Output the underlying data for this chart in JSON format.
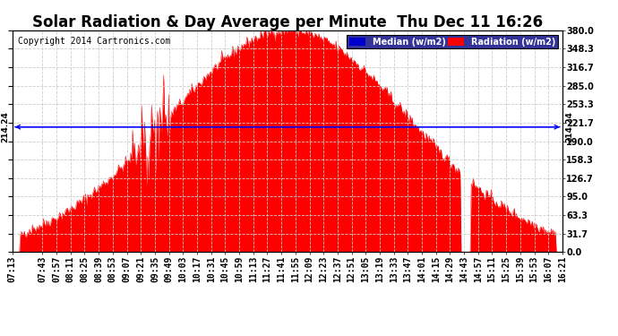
{
  "title": "Solar Radiation & Day Average per Minute  Thu Dec 11 16:26",
  "copyright": "Copyright 2014 Cartronics.com",
  "ylabel_right_values": [
    0.0,
    31.7,
    63.3,
    95.0,
    126.7,
    158.3,
    190.0,
    221.7,
    253.3,
    285.0,
    316.7,
    348.3,
    380.0
  ],
  "ymax": 380.0,
  "ymin": 0.0,
  "median_value": 214.24,
  "median_label": "214.24",
  "fill_color": "#ff0000",
  "median_line_color": "#0000ff",
  "background_color": "#ffffff",
  "plot_bg_color": "#ffffff",
  "grid_color": "#cccccc",
  "legend_median_bg": "#0000cc",
  "legend_radiation_bg": "#ff0000",
  "legend_text_color": "#ffffff",
  "title_fontsize": 12,
  "copyright_fontsize": 7,
  "tick_fontsize": 7,
  "x_tick_labels": [
    "07:13",
    "07:43",
    "07:57",
    "08:11",
    "08:25",
    "08:39",
    "08:53",
    "09:07",
    "09:21",
    "09:35",
    "09:49",
    "10:03",
    "10:17",
    "10:31",
    "10:45",
    "10:59",
    "11:13",
    "11:27",
    "11:41",
    "11:55",
    "12:09",
    "12:23",
    "12:37",
    "12:51",
    "13:05",
    "13:19",
    "13:33",
    "13:47",
    "14:01",
    "14:15",
    "14:29",
    "14:43",
    "14:57",
    "15:11",
    "15:25",
    "15:39",
    "15:53",
    "16:07",
    "16:21"
  ],
  "num_points": 550
}
